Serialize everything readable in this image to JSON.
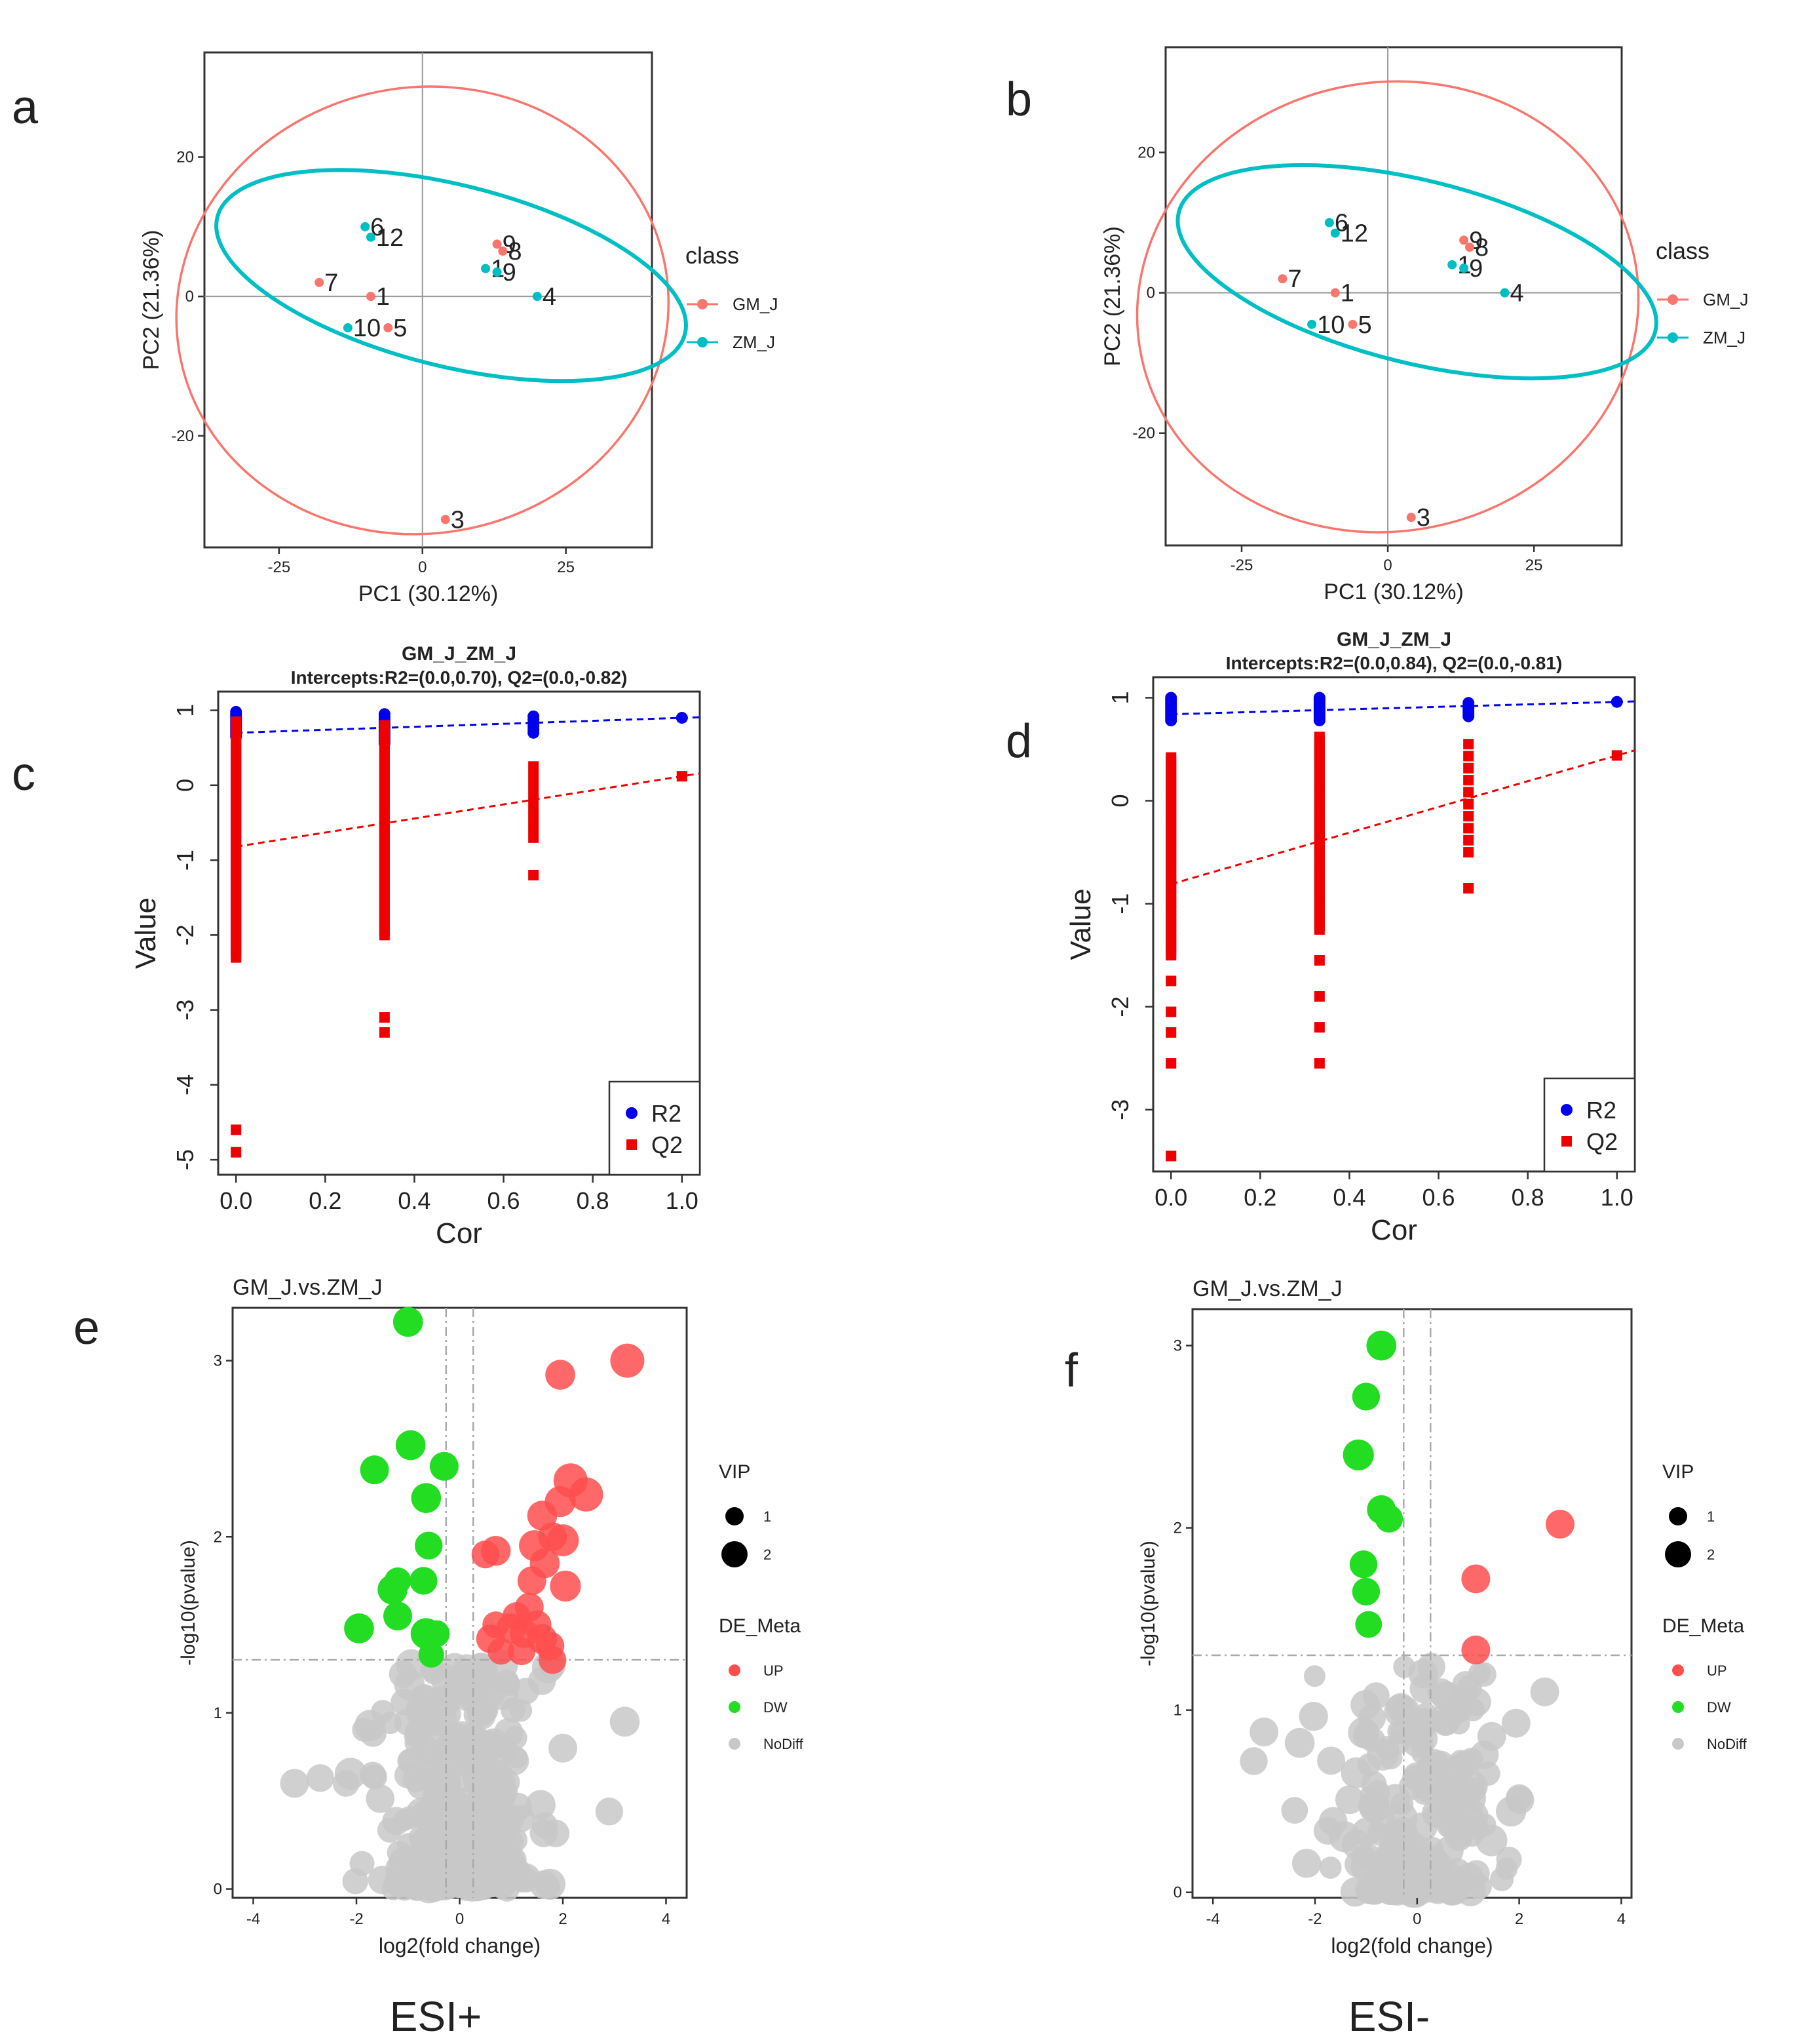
{
  "chart_data": [
    {
      "panel": "a",
      "type": "scatter",
      "xlabel": "PC1 (30.12%)",
      "ylabel": "PC2 (21.36%)",
      "xlim": [
        -38,
        40
      ],
      "ylim": [
        -36,
        35
      ],
      "xticks": [
        -25,
        0,
        25
      ],
      "yticks": [
        -20,
        0,
        20
      ],
      "legend": {
        "title": "class",
        "position": "right",
        "entries": [
          "GM_J",
          "ZM_J"
        ]
      },
      "colors": {
        "GM_J": "#f8766d",
        "ZM_J": "#00bfc4"
      },
      "series": [
        {
          "name": "GM_J",
          "points": [
            {
              "x": -18,
              "y": 2,
              "label": "7"
            },
            {
              "x": -9,
              "y": 0,
              "label": "1"
            },
            {
              "x": -6,
              "y": -4.5,
              "label": "5"
            },
            {
              "x": 13,
              "y": 7.5,
              "label": "9"
            },
            {
              "x": 14,
              "y": 6.5,
              "label": "8"
            },
            {
              "x": 4,
              "y": -32,
              "label": "3"
            }
          ]
        },
        {
          "name": "ZM_J",
          "points": [
            {
              "x": -10,
              "y": 10,
              "label": "6"
            },
            {
              "x": -9,
              "y": 8.5,
              "label": "12"
            },
            {
              "x": 11,
              "y": 4,
              "label": "1"
            },
            {
              "x": 13,
              "y": 3.5,
              "label": "9"
            },
            {
              "x": 20,
              "y": 0,
              "label": "4"
            },
            {
              "x": -13,
              "y": -4.5,
              "label": "10"
            }
          ]
        }
      ],
      "ellipses": [
        {
          "class": "GM_J",
          "cx": 0,
          "cy": -2,
          "rx": 43,
          "ry": 32,
          "angle": -10
        },
        {
          "class": "ZM_J",
          "cx": 5,
          "cy": 3,
          "rx": 42,
          "ry": 13,
          "angle": 14
        }
      ]
    },
    {
      "panel": "b",
      "type": "scatter",
      "xlabel": "PC1 (30.12%)",
      "ylabel": "PC2 (21.36%)",
      "xlim": [
        -38,
        40
      ],
      "ylim": [
        -36,
        35
      ],
      "xticks": [
        -25,
        0,
        25
      ],
      "yticks": [
        -20,
        0,
        20
      ],
      "legend": {
        "title": "class",
        "position": "right",
        "entries": [
          "GM_J",
          "ZM_J"
        ]
      },
      "colors": {
        "GM_J": "#f8766d",
        "ZM_J": "#00bfc4"
      },
      "series": [
        {
          "name": "GM_J",
          "points": [
            {
              "x": -18,
              "y": 2,
              "label": "7"
            },
            {
              "x": -9,
              "y": 0,
              "label": "1"
            },
            {
              "x": -6,
              "y": -4.5,
              "label": "5"
            },
            {
              "x": 13,
              "y": 7.5,
              "label": "9"
            },
            {
              "x": 14,
              "y": 6.5,
              "label": "8"
            },
            {
              "x": 4,
              "y": -32,
              "label": "3"
            }
          ]
        },
        {
          "name": "ZM_J",
          "points": [
            {
              "x": -10,
              "y": 10,
              "label": "6"
            },
            {
              "x": -9,
              "y": 8.5,
              "label": "12"
            },
            {
              "x": 11,
              "y": 4,
              "label": "1"
            },
            {
              "x": 13,
              "y": 3.5,
              "label": "9"
            },
            {
              "x": 20,
              "y": 0,
              "label": "4"
            },
            {
              "x": -13,
              "y": -4.5,
              "label": "10"
            }
          ]
        }
      ],
      "ellipses": [
        {
          "class": "GM_J",
          "cx": 0,
          "cy": -2,
          "rx": 43,
          "ry": 32,
          "angle": -10
        },
        {
          "class": "ZM_J",
          "cx": 5,
          "cy": 3,
          "rx": 42,
          "ry": 13,
          "angle": 14
        }
      ]
    },
    {
      "panel": "c",
      "type": "scatter",
      "title": "GM_J_ZM_J",
      "subtitle": "Intercepts:R2=(0.0,0.70), Q2=(0.0,-0.82)",
      "xlabel": "Cor",
      "ylabel": "Value",
      "xlim": [
        -0.04,
        1.04
      ],
      "ylim": [
        -5.2,
        1.25
      ],
      "xticks": [
        0.0,
        0.2,
        0.4,
        0.6,
        0.8,
        1.0
      ],
      "yticks": [
        -5,
        -4,
        -3,
        -2,
        -1,
        0,
        1
      ],
      "legend": {
        "position": "bottom-right",
        "entries": [
          "R2",
          "Q2"
        ]
      },
      "colors": {
        "R2": "#0000ee",
        "Q2": "#ee0000"
      },
      "series": [
        {
          "name": "R2",
          "marker": "circle",
          "groups": [
            {
              "x": 0.0,
              "min": 0.65,
              "max": 0.98,
              "n": 12
            },
            {
              "x": 0.333,
              "min": 0.56,
              "max": 0.95,
              "n": 12
            },
            {
              "x": 0.667,
              "min": 0.7,
              "max": 0.92,
              "n": 6
            }
          ],
          "extra": [
            {
              "x": 1.0,
              "y": 0.9
            }
          ]
        },
        {
          "name": "Q2",
          "marker": "square",
          "groups": [
            {
              "x": 0.0,
              "min": -2.3,
              "max": 0.85,
              "n": 60
            },
            {
              "x": 0.333,
              "min": -2.0,
              "max": 0.8,
              "n": 60
            },
            {
              "x": 0.667,
              "min": -0.7,
              "max": 0.25,
              "n": 8
            }
          ],
          "extra": [
            {
              "x": 0.0,
              "y": -4.6
            },
            {
              "x": 0.0,
              "y": -4.9
            },
            {
              "x": 0.333,
              "y": -3.1
            },
            {
              "x": 0.333,
              "y": -3.3
            },
            {
              "x": 0.667,
              "y": -1.2
            },
            {
              "x": 1.0,
              "y": 0.12
            }
          ]
        }
      ],
      "fit_lines": [
        {
          "series": "R2",
          "intercept": 0.7,
          "slope": 0.2
        },
        {
          "series": "Q2",
          "intercept": -0.82,
          "slope": 0.94
        }
      ]
    },
    {
      "panel": "d",
      "type": "scatter",
      "title": "GM_J_ZM_J",
      "subtitle": "Intercepts:R2=(0.0,0.84), Q2=(0.0,-0.81)",
      "xlabel": "Cor",
      "ylabel": "Value",
      "xlim": [
        -0.04,
        1.04
      ],
      "ylim": [
        -3.6,
        1.2
      ],
      "xticks": [
        0.0,
        0.2,
        0.4,
        0.6,
        0.8,
        1.0
      ],
      "yticks": [
        -3,
        -2,
        -1,
        0,
        1
      ],
      "legend": {
        "position": "bottom-right",
        "entries": [
          "R2",
          "Q2"
        ]
      },
      "colors": {
        "R2": "#0000ee",
        "Q2": "#ee0000"
      },
      "series": [
        {
          "name": "R2",
          "marker": "circle",
          "groups": [
            {
              "x": 0.0,
              "min": 0.78,
              "max": 1.0,
              "n": 12
            },
            {
              "x": 0.333,
              "min": 0.78,
              "max": 1.0,
              "n": 12
            },
            {
              "x": 0.667,
              "min": 0.82,
              "max": 0.95,
              "n": 6
            }
          ],
          "extra": [
            {
              "x": 1.0,
              "y": 0.96
            }
          ]
        },
        {
          "name": "Q2",
          "marker": "square",
          "groups": [
            {
              "x": 0.0,
              "min": -1.5,
              "max": 0.42,
              "n": 50
            },
            {
              "x": 0.333,
              "min": -1.25,
              "max": 0.62,
              "n": 50
            },
            {
              "x": 0.667,
              "min": -0.5,
              "max": 0.55,
              "n": 10
            }
          ],
          "extra": [
            {
              "x": 0.0,
              "y": -1.75
            },
            {
              "x": 0.0,
              "y": -2.05
            },
            {
              "x": 0.0,
              "y": -2.25
            },
            {
              "x": 0.0,
              "y": -2.55
            },
            {
              "x": 0.0,
              "y": -3.45
            },
            {
              "x": 0.333,
              "y": -1.55
            },
            {
              "x": 0.333,
              "y": -1.9
            },
            {
              "x": 0.333,
              "y": -2.2
            },
            {
              "x": 0.333,
              "y": -2.55
            },
            {
              "x": 0.667,
              "y": -0.85
            },
            {
              "x": 1.0,
              "y": 0.44
            }
          ]
        }
      ],
      "fit_lines": [
        {
          "series": "R2",
          "intercept": 0.84,
          "slope": 0.12
        },
        {
          "series": "Q2",
          "intercept": -0.81,
          "slope": 1.25
        }
      ]
    },
    {
      "panel": "e",
      "type": "scatter",
      "title": "GM_J.vs.ZM_J",
      "xlabel": "log2(fold change)",
      "ylabel": "-log10(pvalue)",
      "xlim": [
        -4.4,
        4.4
      ],
      "ylim": [
        -0.05,
        3.3
      ],
      "xticks": [
        -4,
        -2,
        0,
        2,
        4
      ],
      "yticks": [
        0,
        1,
        2,
        3
      ],
      "thresholds": {
        "x": [
          -0.263,
          0.263
        ],
        "y": 1.301
      },
      "legend": {
        "position": "right",
        "vip_title": "VIP",
        "vip_entries": [
          "1",
          "2"
        ],
        "de_title": "DE_Meta",
        "de_entries": [
          "UP",
          "DW",
          "NoDiff"
        ]
      },
      "colors": {
        "UP": "#ff4d4d",
        "DW": "#22dd22",
        "NoDiff": "#c8c8c8"
      },
      "series": [
        {
          "name": "UP",
          "points": [
            {
              "x": 3.25,
              "y": 3.0,
              "vip": 2
            },
            {
              "x": 1.95,
              "y": 2.92,
              "vip": 1.6
            },
            {
              "x": 2.15,
              "y": 2.32,
              "vip": 2
            },
            {
              "x": 2.45,
              "y": 2.24,
              "vip": 2
            },
            {
              "x": 1.95,
              "y": 2.2,
              "vip": 1.7
            },
            {
              "x": 1.6,
              "y": 2.12,
              "vip": 1.6
            },
            {
              "x": 1.8,
              "y": 2.0,
              "vip": 1.5
            },
            {
              "x": 2.0,
              "y": 1.98,
              "vip": 1.8
            },
            {
              "x": 1.45,
              "y": 1.95,
              "vip": 1.7
            },
            {
              "x": 0.7,
              "y": 1.92,
              "vip": 1.6
            },
            {
              "x": 0.5,
              "y": 1.9,
              "vip": 1.4
            },
            {
              "x": 1.65,
              "y": 1.85,
              "vip": 1.6
            },
            {
              "x": 1.4,
              "y": 1.75,
              "vip": 1.5
            },
            {
              "x": 2.05,
              "y": 1.72,
              "vip": 1.7
            },
            {
              "x": 1.35,
              "y": 1.6,
              "vip": 1.5
            },
            {
              "x": 1.1,
              "y": 1.55,
              "vip": 1.4
            },
            {
              "x": 1.5,
              "y": 1.5,
              "vip": 1.5
            },
            {
              "x": 0.7,
              "y": 1.5,
              "vip": 1.3
            },
            {
              "x": 1.0,
              "y": 1.48,
              "vip": 1.6
            },
            {
              "x": 1.25,
              "y": 1.45,
              "vip": 1.5
            },
            {
              "x": 1.6,
              "y": 1.42,
              "vip": 1.6
            },
            {
              "x": 0.6,
              "y": 1.42,
              "vip": 1.5
            },
            {
              "x": 1.75,
              "y": 1.38,
              "vip": 1.5
            },
            {
              "x": 0.8,
              "y": 1.35,
              "vip": 1.3
            },
            {
              "x": 1.2,
              "y": 1.35,
              "vip": 1.4
            },
            {
              "x": 1.8,
              "y": 1.3,
              "vip": 1.4
            }
          ]
        },
        {
          "name": "DW",
          "points": [
            {
              "x": -1.0,
              "y": 3.22,
              "vip": 1.6
            },
            {
              "x": -0.95,
              "y": 2.52,
              "vip": 1.6
            },
            {
              "x": -1.65,
              "y": 2.38,
              "vip": 1.5
            },
            {
              "x": -0.3,
              "y": 2.4,
              "vip": 1.5
            },
            {
              "x": -0.65,
              "y": 2.22,
              "vip": 1.6
            },
            {
              "x": -0.6,
              "y": 1.95,
              "vip": 1.4
            },
            {
              "x": -0.7,
              "y": 1.75,
              "vip": 1.4
            },
            {
              "x": -1.2,
              "y": 1.75,
              "vip": 1.3
            },
            {
              "x": -1.3,
              "y": 1.7,
              "vip": 1.6
            },
            {
              "x": -1.2,
              "y": 1.55,
              "vip": 1.5
            },
            {
              "x": -1.95,
              "y": 1.48,
              "vip": 1.6
            },
            {
              "x": -0.65,
              "y": 1.45,
              "vip": 1.7
            },
            {
              "x": -0.45,
              "y": 1.45,
              "vip": 1.3
            },
            {
              "x": -0.55,
              "y": 1.33,
              "vip": 1.2
            }
          ]
        },
        {
          "name": "NoDiff",
          "generated": {
            "count": 300,
            "x_sd": 0.75,
            "y_max": 1.28,
            "seed": 11
          },
          "points": [
            {
              "x": -3.2,
              "y": 0.6,
              "vip": 1.5
            },
            {
              "x": -2.7,
              "y": 0.63,
              "vip": 1.4
            },
            {
              "x": -2.2,
              "y": 0.6,
              "vip": 1.3
            },
            {
              "x": 3.2,
              "y": 0.95,
              "vip": 1.6
            },
            {
              "x": 2.9,
              "y": 0.44,
              "vip": 1.4
            },
            {
              "x": 2.0,
              "y": 0.8,
              "vip": 1.5
            },
            {
              "x": -1.1,
              "y": 1.22,
              "vip": 1.4
            }
          ]
        }
      ]
    },
    {
      "panel": "f",
      "type": "scatter",
      "title": "GM_J.vs.ZM_J",
      "xlabel": "log2(fold change)",
      "ylabel": "-log10(pvalue)",
      "xlim": [
        -4.4,
        4.2
      ],
      "ylim": [
        -0.03,
        3.2
      ],
      "xticks": [
        -4,
        -2,
        0,
        2,
        4
      ],
      "yticks": [
        0,
        1,
        2,
        3
      ],
      "thresholds": {
        "x": [
          -0.263,
          0.263
        ],
        "y": 1.301
      },
      "legend": {
        "position": "right",
        "vip_title": "VIP",
        "vip_entries": [
          "1",
          "2"
        ],
        "de_title": "DE_Meta",
        "de_entries": [
          "UP",
          "DW",
          "NoDiff"
        ]
      },
      "colors": {
        "UP": "#ff4d4d",
        "DW": "#22dd22",
        "NoDiff": "#c8c8c8"
      },
      "series": [
        {
          "name": "UP",
          "points": [
            {
              "x": 2.8,
              "y": 2.02,
              "vip": 1.5
            },
            {
              "x": 1.15,
              "y": 1.72,
              "vip": 1.5
            },
            {
              "x": 1.15,
              "y": 1.33,
              "vip": 1.5
            }
          ]
        },
        {
          "name": "DW",
          "points": [
            {
              "x": -0.7,
              "y": 3.0,
              "vip": 1.6
            },
            {
              "x": -1.0,
              "y": 2.72,
              "vip": 1.4
            },
            {
              "x": -1.15,
              "y": 2.4,
              "vip": 1.7
            },
            {
              "x": -0.7,
              "y": 2.1,
              "vip": 1.5
            },
            {
              "x": -0.55,
              "y": 2.05,
              "vip": 1.4
            },
            {
              "x": -1.05,
              "y": 1.8,
              "vip": 1.4
            },
            {
              "x": -1.0,
              "y": 1.65,
              "vip": 1.4
            },
            {
              "x": -0.95,
              "y": 1.47,
              "vip": 1.3
            }
          ]
        },
        {
          "name": "NoDiff",
          "generated": {
            "count": 200,
            "x_sd": 0.8,
            "y_max": 1.24,
            "seed": 23
          },
          "points": [
            {
              "x": -3.0,
              "y": 0.88,
              "vip": 1.5
            },
            {
              "x": -3.2,
              "y": 0.72,
              "vip": 1.4
            },
            {
              "x": -2.3,
              "y": 0.82,
              "vip": 1.6
            },
            {
              "x": 2.5,
              "y": 1.1,
              "vip": 1.5
            },
            {
              "x": 2.0,
              "y": 0.52,
              "vip": 1.3
            },
            {
              "x": 1.8,
              "y": 0.18,
              "vip": 1.2
            },
            {
              "x": -2.4,
              "y": 0.45,
              "vip": 1.3
            }
          ]
        }
      ]
    }
  ],
  "panel_labels": [
    "a",
    "b",
    "c",
    "d",
    "e",
    "f"
  ],
  "captions": {
    "left": "ESI+",
    "right": "ESI-"
  }
}
